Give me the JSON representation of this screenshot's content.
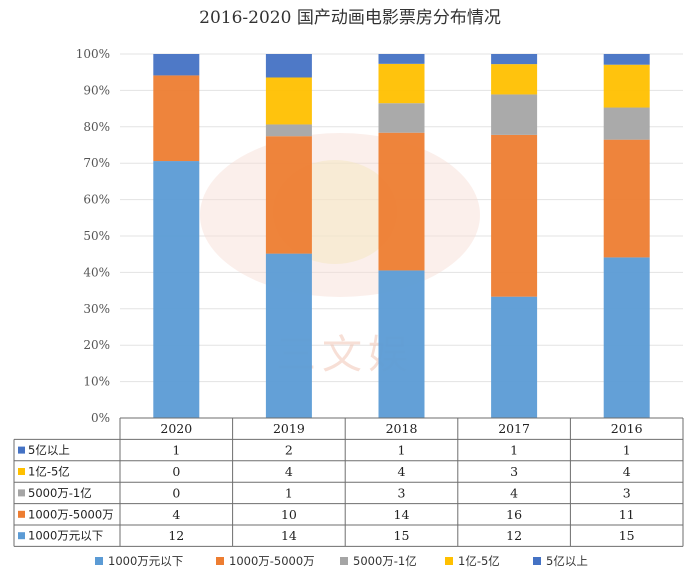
{
  "chart_data": {
    "type": "bar",
    "stacked": true,
    "normalized": true,
    "title": "2016-2020 国产动画电影票房分布情况",
    "categories": [
      "2020",
      "2019",
      "2018",
      "2017",
      "2016"
    ],
    "y_ticks": [
      "0%",
      "10%",
      "20%",
      "30%",
      "40%",
      "50%",
      "60%",
      "70%",
      "80%",
      "90%",
      "100%"
    ],
    "ylim": [
      0,
      100
    ],
    "grid": true,
    "series": [
      {
        "name": "1000万元以下",
        "color": "#5b9bd5",
        "values": [
          12,
          14,
          15,
          12,
          15
        ]
      },
      {
        "name": "1000万-5000万",
        "color": "#ed7d31",
        "values": [
          4,
          10,
          14,
          16,
          11
        ]
      },
      {
        "name": "5000万-1亿",
        "color": "#a5a5a5",
        "values": [
          0,
          1,
          3,
          4,
          3
        ]
      },
      {
        "name": "1亿-5亿",
        "color": "#ffc000",
        "values": [
          0,
          4,
          4,
          3,
          4
        ]
      },
      {
        "name": "5亿以上",
        "color": "#4472c4",
        "values": [
          1,
          2,
          1,
          1,
          1
        ]
      }
    ],
    "legend_position": "bottom",
    "data_table": true
  },
  "watermark": "三文娱"
}
